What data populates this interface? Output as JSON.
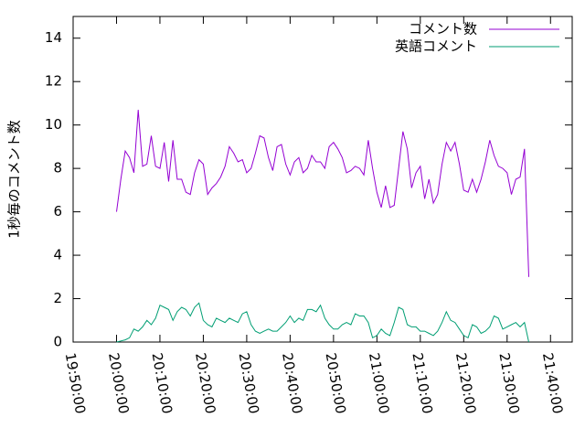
{
  "chart_data": {
    "type": "line",
    "ylabel": "1秒毎のコメント数",
    "x": [
      "20:00:00",
      "20:01:00",
      "20:02:00",
      "20:03:00",
      "20:04:00",
      "20:05:00",
      "20:06:00",
      "20:07:00",
      "20:08:00",
      "20:09:00",
      "20:10:00",
      "20:11:00",
      "20:12:00",
      "20:13:00",
      "20:14:00",
      "20:15:00",
      "20:16:00",
      "20:17:00",
      "20:18:00",
      "20:19:00",
      "20:20:00",
      "20:21:00",
      "20:22:00",
      "20:23:00",
      "20:24:00",
      "20:25:00",
      "20:26:00",
      "20:27:00",
      "20:28:00",
      "20:29:00",
      "20:30:00",
      "20:31:00",
      "20:32:00",
      "20:33:00",
      "20:34:00",
      "20:35:00",
      "20:36:00",
      "20:37:00",
      "20:38:00",
      "20:39:00",
      "20:40:00",
      "20:41:00",
      "20:42:00",
      "20:43:00",
      "20:44:00",
      "20:45:00",
      "20:46:00",
      "20:47:00",
      "20:48:00",
      "20:49:00",
      "20:50:00",
      "20:51:00",
      "20:52:00",
      "20:53:00",
      "20:54:00",
      "20:55:00",
      "20:56:00",
      "20:57:00",
      "20:58:00",
      "20:59:00",
      "21:00:00",
      "21:01:00",
      "21:02:00",
      "21:03:00",
      "21:04:00",
      "21:05:00",
      "21:06:00",
      "21:07:00",
      "21:08:00",
      "21:09:00",
      "21:10:00",
      "21:11:00",
      "21:12:00",
      "21:13:00",
      "21:14:00",
      "21:15:00",
      "21:16:00",
      "21:17:00",
      "21:18:00",
      "21:19:00",
      "21:20:00",
      "21:21:00",
      "21:22:00",
      "21:23:00",
      "21:24:00",
      "21:25:00",
      "21:26:00",
      "21:27:00",
      "21:28:00",
      "21:29:00",
      "21:30:00",
      "21:31:00",
      "21:32:00",
      "21:33:00",
      "21:34:00",
      "21:35:00"
    ],
    "series": [
      {
        "name": "コメント数",
        "color": "#9400d3",
        "values": [
          6.0,
          7.5,
          8.8,
          8.5,
          7.8,
          10.7,
          8.1,
          8.2,
          9.5,
          8.1,
          8.0,
          9.2,
          7.4,
          9.3,
          7.5,
          7.5,
          6.9,
          6.8,
          7.8,
          8.4,
          8.2,
          6.8,
          7.1,
          7.3,
          7.6,
          8.1,
          9.0,
          8.7,
          8.3,
          8.4,
          7.8,
          8.0,
          8.7,
          9.5,
          9.4,
          8.5,
          7.9,
          9.0,
          9.1,
          8.2,
          7.7,
          8.3,
          8.5,
          7.8,
          8.0,
          8.6,
          8.3,
          8.3,
          8.0,
          9.0,
          9.2,
          8.9,
          8.5,
          7.8,
          7.9,
          8.1,
          8.0,
          7.7,
          9.3,
          8.0,
          6.9,
          6.2,
          7.2,
          6.2,
          6.3,
          8.0,
          9.7,
          8.9,
          7.1,
          7.8,
          8.1,
          6.6,
          7.5,
          6.4,
          6.8,
          8.2,
          9.2,
          8.8,
          9.2,
          8.2,
          7.0,
          6.9,
          7.5,
          6.9,
          7.5,
          8.3,
          9.3,
          8.6,
          8.1,
          8.0,
          7.8,
          6.8,
          7.5,
          7.6,
          8.9,
          3.0
        ]
      },
      {
        "name": "英語コメント",
        "color": "#009e73",
        "values": [
          0,
          0.05,
          0.1,
          0.2,
          0.6,
          0.5,
          0.7,
          1.0,
          0.8,
          1.1,
          1.7,
          1.6,
          1.5,
          1.0,
          1.4,
          1.6,
          1.5,
          1.2,
          1.6,
          1.8,
          1.0,
          0.8,
          0.7,
          1.1,
          1.0,
          0.9,
          1.1,
          1.0,
          0.9,
          1.3,
          1.4,
          0.8,
          0.5,
          0.4,
          0.5,
          0.6,
          0.5,
          0.5,
          0.7,
          0.9,
          1.2,
          0.9,
          1.1,
          1.0,
          1.5,
          1.5,
          1.4,
          1.7,
          1.1,
          0.8,
          0.6,
          0.6,
          0.8,
          0.9,
          0.8,
          1.3,
          1.2,
          1.2,
          0.9,
          0.2,
          0.3,
          0.6,
          0.4,
          0.3,
          0.9,
          1.6,
          1.5,
          0.8,
          0.7,
          0.7,
          0.5,
          0.5,
          0.4,
          0.3,
          0.5,
          0.9,
          1.4,
          1.0,
          0.9,
          0.6,
          0.3,
          0.2,
          0.8,
          0.7,
          0.4,
          0.5,
          0.7,
          1.2,
          1.1,
          0.6,
          0.7,
          0.8,
          0.9,
          0.7,
          0.9,
          0.0
        ]
      }
    ],
    "xlim": [
      "19:50:00",
      "21:45:00"
    ],
    "xticks": [
      "19:50:00",
      "20:00:00",
      "20:10:00",
      "20:20:00",
      "20:30:00",
      "20:40:00",
      "20:50:00",
      "21:00:00",
      "21:10:00",
      "21:20:00",
      "21:30:00",
      "21:40:00"
    ],
    "ylim": [
      0,
      15
    ],
    "yticks": [
      0,
      2,
      4,
      6,
      8,
      10,
      12,
      14
    ],
    "legend": "top-right"
  }
}
